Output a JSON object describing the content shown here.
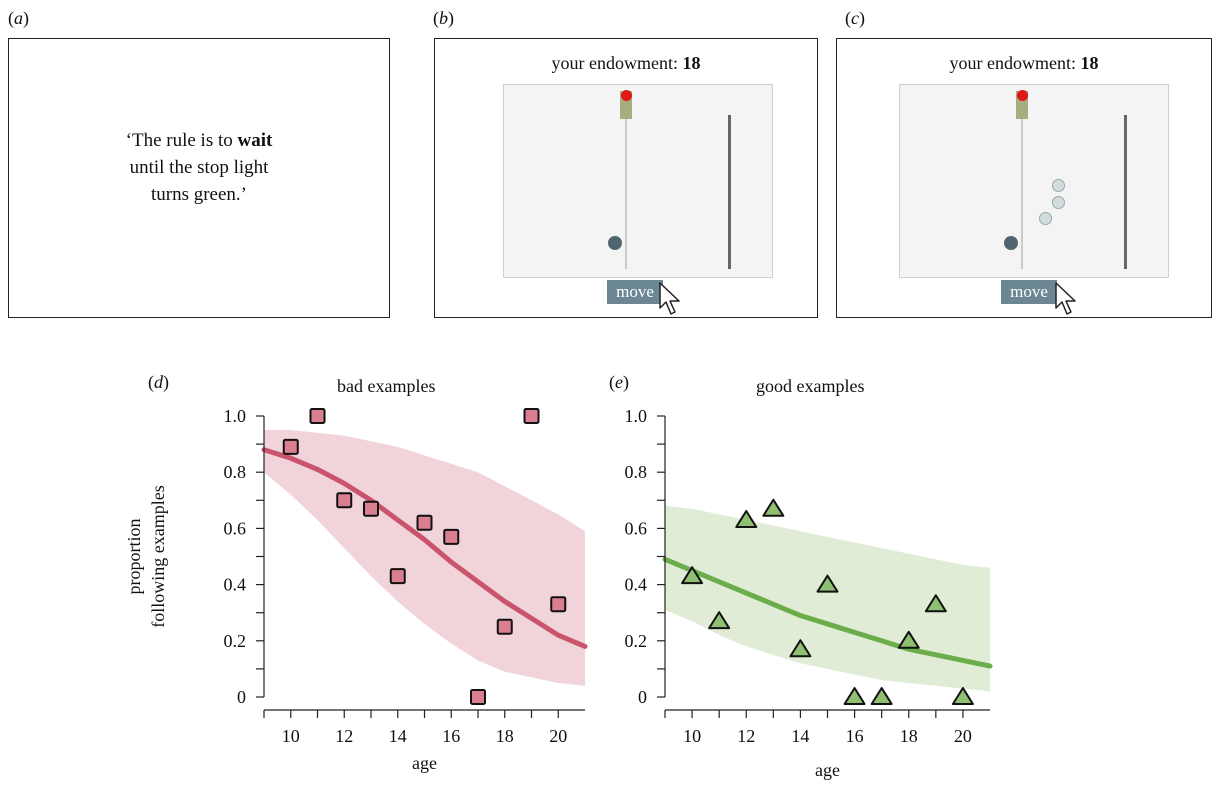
{
  "panels": {
    "a": {
      "letter": "a",
      "rule_line1_pre": "‘The rule is to ",
      "rule_bold": "wait",
      "rule_line2": "until the stop light",
      "rule_line3": "turns green.’"
    },
    "b": {
      "letter": "b",
      "endowment_label": "your endowment: ",
      "endowment_value": "18",
      "button": "move"
    },
    "c": {
      "letter": "c",
      "endowment_label": "your endowment: ",
      "endowment_value": "18",
      "button": "move"
    },
    "d": {
      "letter": "d"
    },
    "e": {
      "letter": "e"
    }
  },
  "colors": {
    "bad": "#c9546b",
    "bad_band": "#f0d4da",
    "bad_marker": "#d97f90",
    "good": "#6aad4a",
    "good_band": "#e1ecd6",
    "good_marker": "#8fbf72",
    "button": "#6b8793",
    "agent": "#4f6570",
    "stoplight_red": "#e11818"
  },
  "chart_data": [
    {
      "type": "scatter",
      "title": "bad examples",
      "xlabel": "age",
      "ylabel": "proportion following examples",
      "xlim": [
        9,
        21
      ],
      "ylim": [
        0,
        1.0
      ],
      "xticks": [
        "10",
        "12",
        "14",
        "16",
        "18",
        "20"
      ],
      "yticks": [
        "0",
        "0.2",
        "0.4",
        "0.6",
        "0.8",
        "1.0"
      ],
      "marker": "square",
      "points": {
        "x": [
          10,
          11,
          12,
          13,
          14,
          15,
          16,
          17,
          18,
          19,
          20
        ],
        "y": [
          0.89,
          1.0,
          0.7,
          0.67,
          0.43,
          0.62,
          0.57,
          0.0,
          0.25,
          1.0,
          0.33
        ]
      },
      "fit": {
        "x": [
          9,
          10,
          11,
          12,
          13,
          14,
          15,
          16,
          17,
          18,
          19,
          20,
          21
        ],
        "y": [
          0.88,
          0.85,
          0.81,
          0.76,
          0.7,
          0.63,
          0.56,
          0.48,
          0.41,
          0.34,
          0.28,
          0.22,
          0.18
        ]
      },
      "band": {
        "upper": [
          0.95,
          0.95,
          0.94,
          0.93,
          0.91,
          0.89,
          0.86,
          0.83,
          0.8,
          0.75,
          0.7,
          0.65,
          0.59
        ],
        "lower": [
          0.8,
          0.72,
          0.63,
          0.53,
          0.43,
          0.34,
          0.26,
          0.19,
          0.13,
          0.09,
          0.07,
          0.05,
          0.04
        ]
      }
    },
    {
      "type": "scatter",
      "title": "good examples",
      "xlabel": "age",
      "ylabel": "",
      "xlim": [
        9,
        21
      ],
      "ylim": [
        0,
        1.0
      ],
      "xticks": [
        "10",
        "12",
        "14",
        "16",
        "18",
        "20"
      ],
      "yticks": [
        "0",
        "0.2",
        "0.4",
        "0.6",
        "0.8",
        "1.0"
      ],
      "marker": "triangle",
      "points": {
        "x": [
          10,
          11,
          12,
          13,
          14,
          15,
          16,
          17,
          18,
          19,
          20
        ],
        "y": [
          0.43,
          0.27,
          0.63,
          0.67,
          0.17,
          0.4,
          0.0,
          0.0,
          0.2,
          0.33,
          0.0
        ]
      },
      "fit": {
        "x": [
          9,
          10,
          11,
          12,
          13,
          14,
          15,
          16,
          17,
          18,
          19,
          20,
          21
        ],
        "y": [
          0.49,
          0.45,
          0.41,
          0.37,
          0.33,
          0.29,
          0.26,
          0.23,
          0.2,
          0.17,
          0.15,
          0.13,
          0.11
        ]
      },
      "band": {
        "upper": [
          0.68,
          0.67,
          0.65,
          0.63,
          0.61,
          0.59,
          0.57,
          0.55,
          0.53,
          0.51,
          0.49,
          0.47,
          0.46
        ],
        "lower": [
          0.31,
          0.27,
          0.22,
          0.18,
          0.15,
          0.12,
          0.1,
          0.08,
          0.06,
          0.05,
          0.04,
          0.03,
          0.02
        ]
      }
    }
  ]
}
